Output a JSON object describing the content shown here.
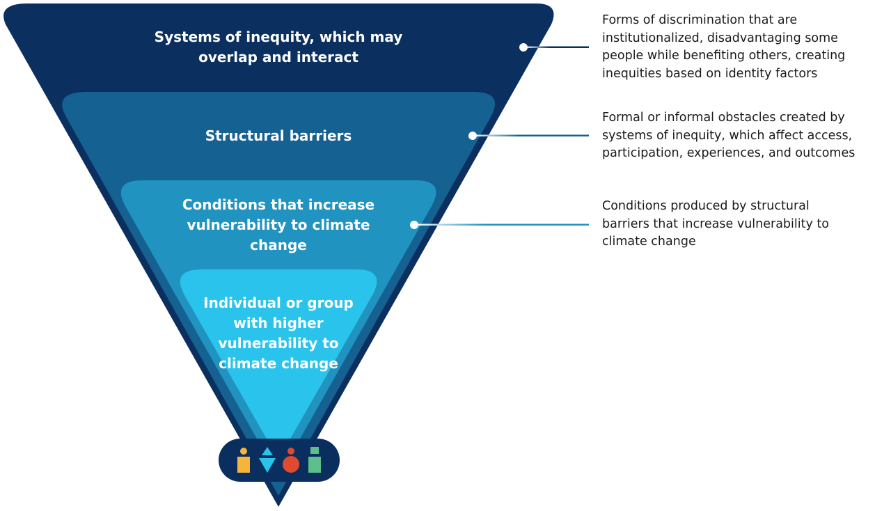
{
  "colors": {
    "layer1": "#0b3060",
    "layer2": "#156191",
    "layer3": "#2193c0",
    "layer4": "#29c3ec",
    "pill": "#0a2f5f"
  },
  "layers": [
    {
      "label": "Systems of inequity, which may overlap and interact",
      "description": "Forms of discrimination that are\ninstitutionalized, disadvantaging some\npeople while benefiting others, creating\ninequities based on identity factors"
    },
    {
      "label": "Structural barriers",
      "description": "Formal or informal obstacles created by\nsystems of inequity, which affect access,\nparticipation, experiences, and outcomes"
    },
    {
      "label": "Conditions that increase vulnerability to climate change",
      "description": "Conditions produced by structural\nbarriers that increase vulnerability to\nclimate change"
    },
    {
      "label": "Individual or group with higher vulnerability to climate change"
    }
  ],
  "people_icons": [
    {
      "name": "person-yellow-icon",
      "color": "#f6b53a"
    },
    {
      "name": "person-triangles-icon",
      "color": "#29c3ec"
    },
    {
      "name": "person-red-icon",
      "color": "#e04a2f"
    },
    {
      "name": "person-green-icon",
      "color": "#5cbf8c"
    }
  ]
}
